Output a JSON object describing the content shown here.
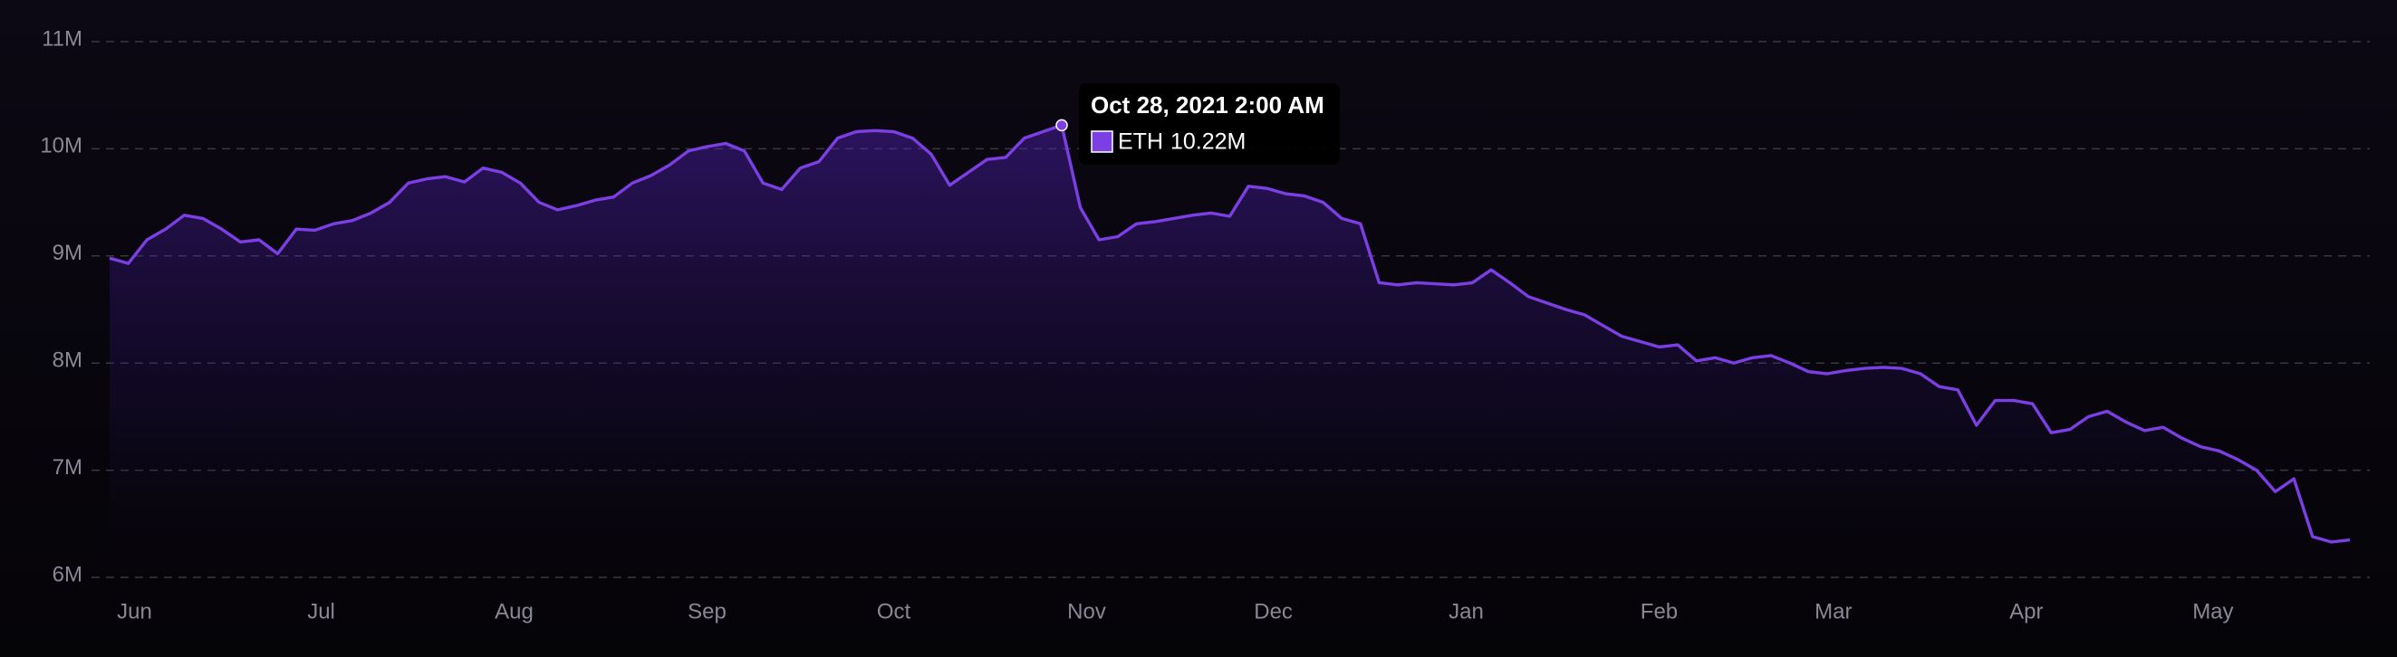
{
  "chart_data": {
    "type": "area",
    "x": [
      "2021-05-28",
      "2021-05-31",
      "2021-06-03",
      "2021-06-06",
      "2021-06-09",
      "2021-06-12",
      "2021-06-15",
      "2021-06-18",
      "2021-06-21",
      "2021-06-24",
      "2021-06-27",
      "2021-06-30",
      "2021-07-03",
      "2021-07-06",
      "2021-07-09",
      "2021-07-12",
      "2021-07-15",
      "2021-07-18",
      "2021-07-21",
      "2021-07-24",
      "2021-07-27",
      "2021-07-30",
      "2021-08-02",
      "2021-08-05",
      "2021-08-08",
      "2021-08-11",
      "2021-08-14",
      "2021-08-17",
      "2021-08-20",
      "2021-08-23",
      "2021-08-26",
      "2021-08-29",
      "2021-09-01",
      "2021-09-04",
      "2021-09-07",
      "2021-09-10",
      "2021-09-13",
      "2021-09-16",
      "2021-09-19",
      "2021-09-22",
      "2021-09-25",
      "2021-09-28",
      "2021-10-01",
      "2021-10-04",
      "2021-10-07",
      "2021-10-10",
      "2021-10-13",
      "2021-10-16",
      "2021-10-19",
      "2021-10-22",
      "2021-10-25",
      "2021-10-28",
      "2021-10-31",
      "2021-11-03",
      "2021-11-06",
      "2021-11-09",
      "2021-11-12",
      "2021-11-15",
      "2021-11-18",
      "2021-11-21",
      "2021-11-24",
      "2021-11-27",
      "2021-11-30",
      "2021-12-03",
      "2021-12-06",
      "2021-12-09",
      "2021-12-12",
      "2021-12-15",
      "2021-12-18",
      "2021-12-21",
      "2021-12-24",
      "2021-12-27",
      "2021-12-30",
      "2022-01-02",
      "2022-01-05",
      "2022-01-08",
      "2022-01-11",
      "2022-01-14",
      "2022-01-17",
      "2022-01-20",
      "2022-01-23",
      "2022-01-26",
      "2022-01-29",
      "2022-02-01",
      "2022-02-04",
      "2022-02-07",
      "2022-02-10",
      "2022-02-13",
      "2022-02-16",
      "2022-02-19",
      "2022-02-22",
      "2022-02-25",
      "2022-02-28",
      "2022-03-03",
      "2022-03-06",
      "2022-03-09",
      "2022-03-12",
      "2022-03-15",
      "2022-03-18",
      "2022-03-21",
      "2022-03-24",
      "2022-03-27",
      "2022-03-30",
      "2022-04-02",
      "2022-04-05",
      "2022-04-08",
      "2022-04-11",
      "2022-04-14",
      "2022-04-17",
      "2022-04-20",
      "2022-04-23",
      "2022-04-26",
      "2022-04-29",
      "2022-05-02",
      "2022-05-05",
      "2022-05-08",
      "2022-05-11",
      "2022-05-14",
      "2022-05-17",
      "2022-05-20",
      "2022-05-23"
    ],
    "series": [
      {
        "name": "ETH",
        "color": "#7b3fe4",
        "values": [
          8.98,
          8.93,
          9.15,
          9.25,
          9.38,
          9.35,
          9.25,
          9.13,
          9.15,
          9.02,
          9.25,
          9.24,
          9.3,
          9.33,
          9.4,
          9.5,
          9.68,
          9.72,
          9.74,
          9.69,
          9.82,
          9.78,
          9.68,
          9.5,
          9.43,
          9.47,
          9.52,
          9.55,
          9.68,
          9.75,
          9.85,
          9.98,
          10.02,
          10.05,
          9.98,
          9.68,
          9.62,
          9.82,
          9.88,
          10.1,
          10.16,
          10.17,
          10.16,
          10.1,
          9.95,
          9.66,
          9.78,
          9.9,
          9.92,
          10.1,
          10.16,
          10.22,
          9.45,
          9.15,
          9.18,
          9.3,
          9.32,
          9.35,
          9.38,
          9.4,
          9.37,
          9.65,
          9.63,
          9.58,
          9.56,
          9.5,
          9.35,
          9.3,
          8.75,
          8.73,
          8.75,
          8.74,
          8.73,
          8.75,
          8.87,
          8.75,
          8.62,
          8.56,
          8.5,
          8.45,
          8.35,
          8.25,
          8.2,
          8.15,
          8.17,
          8.02,
          8.05,
          8.0,
          8.05,
          8.07,
          8.0,
          7.92,
          7.9,
          7.93,
          7.95,
          7.96,
          7.95,
          7.9,
          7.78,
          7.75,
          7.42,
          7.65,
          7.65,
          7.62,
          7.35,
          7.38,
          7.5,
          7.55,
          7.45,
          7.37,
          7.4,
          7.3,
          7.22,
          7.18,
          7.1,
          7.0,
          6.8,
          6.92,
          6.38,
          6.33,
          6.35
        ]
      }
    ],
    "xlim": [
      "2021-05-28",
      "2022-05-23"
    ],
    "xticks": [
      {
        "value": "2021-06-01",
        "label": "Jun"
      },
      {
        "value": "2021-07-01",
        "label": "Jul"
      },
      {
        "value": "2021-08-01",
        "label": "Aug"
      },
      {
        "value": "2021-09-01",
        "label": "Sep"
      },
      {
        "value": "2021-10-01",
        "label": "Oct"
      },
      {
        "value": "2021-11-01",
        "label": "Nov"
      },
      {
        "value": "2021-12-01",
        "label": "Dec"
      },
      {
        "value": "2022-01-01",
        "label": "Jan"
      },
      {
        "value": "2022-02-01",
        "label": "Feb"
      },
      {
        "value": "2022-03-01",
        "label": "Mar"
      },
      {
        "value": "2022-04-01",
        "label": "Apr"
      },
      {
        "value": "2022-05-01",
        "label": "May"
      }
    ],
    "ylim": [
      6,
      11
    ],
    "yticks": [
      {
        "value": 6,
        "label": "6M"
      },
      {
        "value": 7,
        "label": "7M"
      },
      {
        "value": 8,
        "label": "8M"
      },
      {
        "value": 9,
        "label": "9M"
      },
      {
        "value": 10,
        "label": "10M"
      },
      {
        "value": 11,
        "label": "11M"
      }
    ],
    "grid": true,
    "tooltip": {
      "x": "2021-10-28",
      "label": "Oct 28, 2021 2:00 AM",
      "value": 10.22,
      "value_label": "10.22M"
    }
  }
}
